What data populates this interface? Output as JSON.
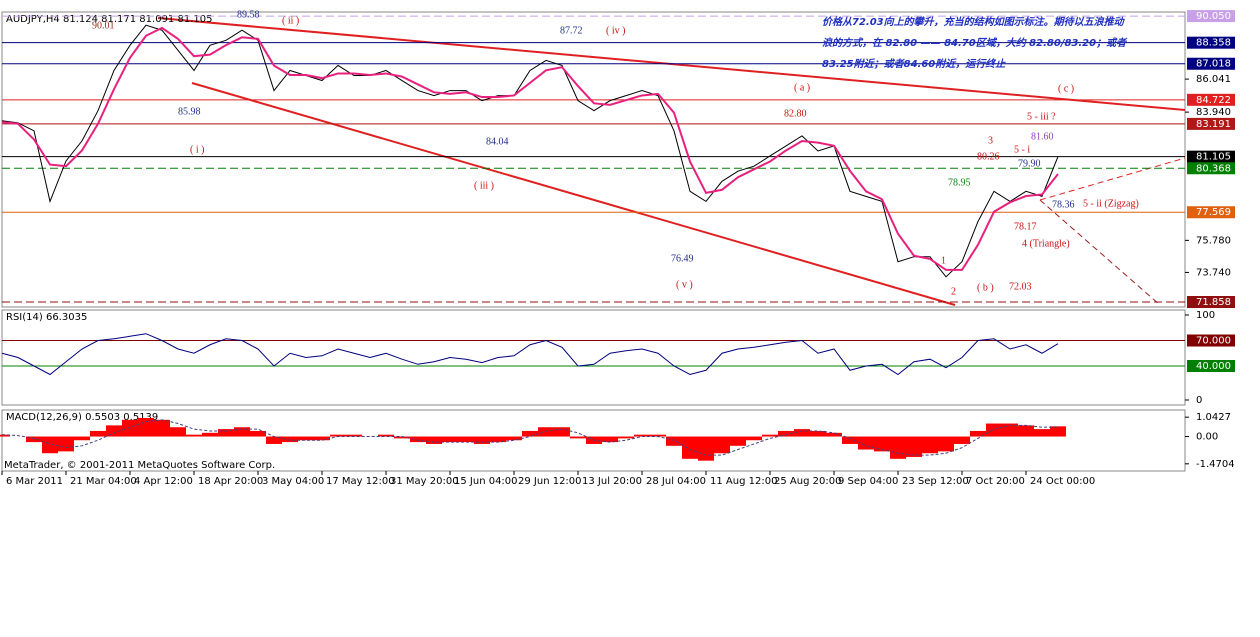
{
  "chart_data": [
    {
      "type": "line",
      "title": "AUDJPY,H4  81.124 81.171 81.091 81.105",
      "series": [
        {
          "color": "#000000",
          "values": [
            83.39,
            83.26,
            82.75,
            78.26,
            80.83,
            82.11,
            84.03,
            86.59,
            88.19,
            89.47,
            89.15,
            87.87,
            86.59,
            88.19,
            88.51,
            89.15,
            88.51,
            85.31,
            86.59,
            86.27,
            85.95,
            86.91,
            86.27,
            86.27,
            86.59,
            85.95,
            85.31,
            84.99,
            85.31,
            85.31,
            84.67,
            84.99,
            84.99,
            86.59,
            87.23,
            86.91,
            84.67,
            84.03,
            84.67,
            84.99,
            85.31,
            84.99,
            82.75,
            78.9,
            78.26,
            79.54,
            80.18,
            80.5,
            81.15,
            81.79,
            82.43,
            81.47,
            81.79,
            78.9,
            78.58,
            78.26,
            74.42,
            74.74,
            74.74,
            73.46,
            74.42,
            76.98,
            78.9,
            78.26,
            78.9,
            78.58,
            81.11
          ]
        },
        {
          "color": "#e8207e",
          "values": [
            83.3,
            83.2,
            82.2,
            80.6,
            80.5,
            81.5,
            83.2,
            85.4,
            87.4,
            88.8,
            89.3,
            88.6,
            87.5,
            87.6,
            88.2,
            88.7,
            88.6,
            86.9,
            86.3,
            86.3,
            86.1,
            86.4,
            86.4,
            86.3,
            86.4,
            86.2,
            85.7,
            85.2,
            85.1,
            85.2,
            84.9,
            84.9,
            85.0,
            85.8,
            86.6,
            86.8,
            85.6,
            84.5,
            84.4,
            84.7,
            85.0,
            85.1,
            83.9,
            80.8,
            78.8,
            79.0,
            79.8,
            80.3,
            80.8,
            81.5,
            82.1,
            82.0,
            81.8,
            80.2,
            78.9,
            78.4,
            76.2,
            74.8,
            74.6,
            73.9,
            73.9,
            75.5,
            77.6,
            78.2,
            78.6,
            78.7,
            80.0
          ]
        }
      ],
      "ylim": [
        71.54,
        90.31
      ],
      "yticks": [
        86.041,
        {
          "value": 83.94,
          "label": "83.940"
        },
        {
          "value": 75.78,
          "label": "75.780"
        },
        {
          "value": 73.74,
          "label": "73.740"
        }
      ],
      "levels": [
        {
          "value": 90.05,
          "label": "90.050",
          "color": "#c8a0e8",
          "style": "dashed"
        },
        {
          "value": 88.358,
          "color": "#000080"
        },
        {
          "value": 87.018,
          "color": "#000080"
        },
        {
          "value": 84.722,
          "color": "#e02020"
        },
        {
          "value": 83.191,
          "color": "#b01818"
        },
        {
          "value": 81.105,
          "color": "#000000"
        },
        {
          "value": 80.368,
          "color": "#008000",
          "style": "dashed"
        },
        {
          "value": 77.569,
          "color": "#e06010"
        },
        {
          "value": 71.858,
          "color": "#901010",
          "style": "dashed"
        }
      ],
      "annotations": [
        "90.01",
        "89.58",
        "( ii )",
        "87.72",
        "( iv )",
        "85.98",
        "( i )",
        "84.04",
        "( iii )",
        "76.49",
        "( v )",
        "( a )",
        "82.80",
        "( c )",
        "5 - iii  ?",
        "3",
        "81.60",
        "80.26",
        "5 - i",
        "79.90",
        "78.95",
        "78.36",
        "5 - ii (Zigzag)",
        "78.17",
        "4  (Triangle)",
        "1",
        "2",
        "( b )",
        "72.03"
      ],
      "note": [
        "价格从72.03向上的攀升，充当的结构如图示标注。期待以五浪推动",
        "浪的方式，在 82.80 —— 84.70区域，大约 82.80/83.20；或者",
        "83.25附近；或者84.60附近，运行终止"
      ]
    },
    {
      "type": "line",
      "title": "RSI(14) 66.3035",
      "series": [
        {
          "color": "#000080",
          "values": [
            55,
            50,
            40,
            30,
            45,
            60,
            70,
            72,
            75,
            78,
            70,
            60,
            55,
            65,
            72,
            70,
            60,
            40,
            55,
            50,
            52,
            60,
            55,
            50,
            55,
            48,
            42,
            45,
            50,
            48,
            44,
            50,
            52,
            65,
            70,
            62,
            40,
            42,
            55,
            58,
            60,
            55,
            40,
            30,
            35,
            55,
            60,
            62,
            65,
            68,
            70,
            55,
            60,
            35,
            40,
            42,
            30,
            45,
            48,
            38,
            50,
            70,
            72,
            60,
            65,
            55,
            66.3
          ]
        }
      ],
      "ylim": [
        -5.9,
        105.9
      ],
      "yticks": [
        100,
        0
      ],
      "levels": [
        {
          "value": 70,
          "label": "70.000",
          "color": "#800000"
        },
        {
          "value": 40,
          "label": "40.000",
          "color": "#008000"
        }
      ]
    },
    {
      "type": "bar",
      "title": "MACD(12,26,9) 0.5503 0.5139",
      "footer": "MetaTrader, © 2001-2011 MetaQuotes Software Corp.",
      "series": [
        {
          "color": "#ff0000",
          "values": [
            0.1,
            0,
            -0.3,
            -0.9,
            -0.8,
            -0.2,
            0.3,
            0.6,
            0.9,
            1.0,
            0.9,
            0.5,
            0.1,
            0.2,
            0.4,
            0.5,
            0.3,
            -0.4,
            -0.3,
            -0.2,
            -0.2,
            0.1,
            0.1,
            0,
            0.1,
            -0.1,
            -0.3,
            -0.4,
            -0.3,
            -0.3,
            -0.4,
            -0.3,
            -0.2,
            0.3,
            0.5,
            0.5,
            -0.1,
            -0.4,
            -0.3,
            -0.1,
            0.1,
            0.1,
            -0.5,
            -1.2,
            -1.3,
            -0.9,
            -0.5,
            -0.2,
            0.1,
            0.3,
            0.4,
            0.3,
            0.2,
            -0.4,
            -0.7,
            -0.8,
            -1.2,
            -1.1,
            -0.9,
            -0.8,
            -0.4,
            0.3,
            0.7,
            0.7,
            0.6,
            0.4,
            0.55
          ]
        },
        {
          "type": "line",
          "color": "#404080",
          "dashed": true,
          "values": [
            0.1,
            0.05,
            -0.1,
            -0.4,
            -0.6,
            -0.5,
            -0.2,
            0.2,
            0.5,
            0.8,
            0.9,
            0.7,
            0.4,
            0.3,
            0.3,
            0.4,
            0.4,
            0,
            -0.2,
            -0.2,
            -0.2,
            0,
            0,
            0,
            0,
            0,
            -0.2,
            -0.3,
            -0.3,
            -0.3,
            -0.3,
            -0.3,
            -0.2,
            0,
            0.3,
            0.4,
            0.2,
            -0.2,
            -0.3,
            -0.2,
            0,
            0,
            -0.2,
            -0.7,
            -1.0,
            -1.0,
            -0.7,
            -0.4,
            -0.1,
            0.1,
            0.3,
            0.3,
            0.2,
            -0.1,
            -0.5,
            -0.7,
            -0.9,
            -1.0,
            -1.0,
            -0.9,
            -0.6,
            -0.1,
            0.4,
            0.6,
            0.6,
            0.5,
            0.51
          ]
        }
      ],
      "ylim": [
        -1.857,
        1.429
      ],
      "yticks": [
        1.0427,
        {
          "value": 0,
          "label": "0.00"
        },
        -1.4704
      ],
      "categories": [
        "6 Mar 2011",
        null,
        null,
        null,
        "21 Mar 04:00",
        null,
        null,
        null,
        "4 Apr 12:00",
        null,
        null,
        null,
        "18 Apr 20:00",
        null,
        null,
        null,
        "3 May 04:00",
        null,
        null,
        null,
        "17 May 12:00",
        null,
        null,
        null,
        "31 May 20:00",
        null,
        null,
        null,
        "15 Jun 04:00",
        null,
        null,
        null,
        "29 Jun 12:00",
        null,
        null,
        null,
        "13 Jul 20:00",
        null,
        null,
        null,
        "28 Jul 04:00",
        null,
        null,
        null,
        "11 Aug 12:00",
        null,
        null,
        null,
        "25 Aug 20:00",
        null,
        null,
        null,
        "9 Sep 04:00",
        null,
        null,
        null,
        "23 Sep 12:00",
        null,
        null,
        null,
        "7 Oct 20:00",
        null,
        null,
        null,
        "24 Oct 00:00",
        null,
        null
      ]
    }
  ]
}
